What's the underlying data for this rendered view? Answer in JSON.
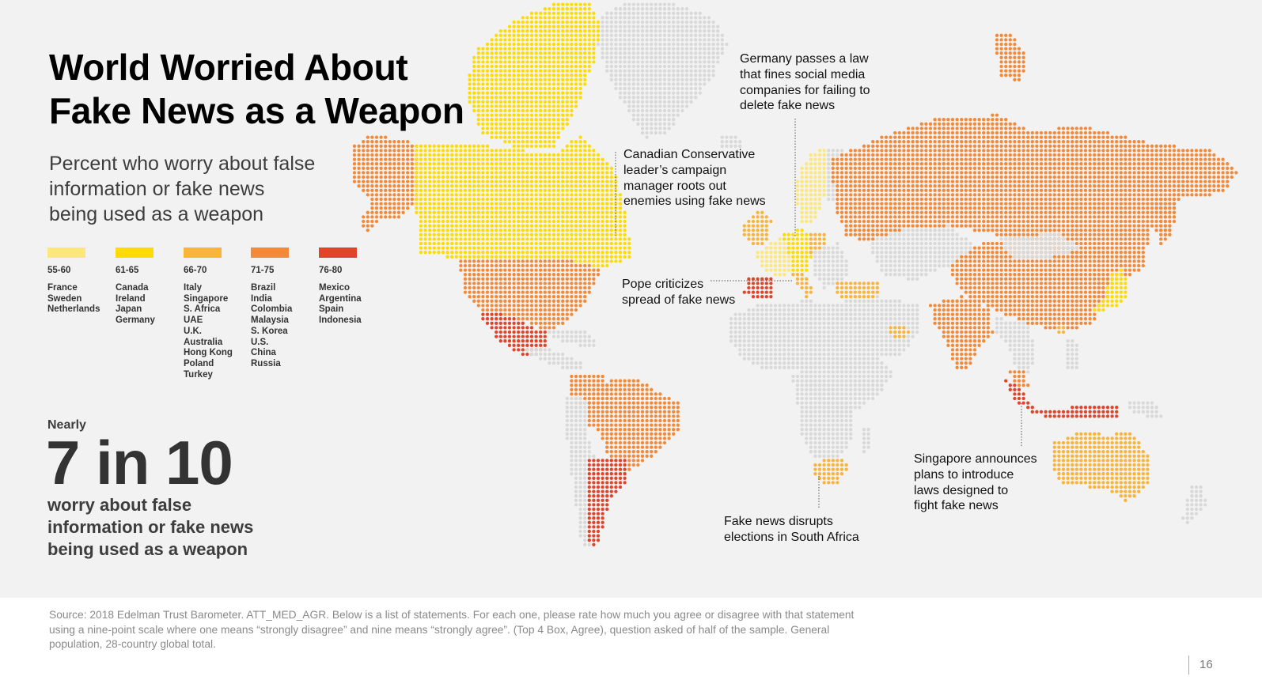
{
  "title": [
    "World Worried About",
    "Fake News as a Weapon"
  ],
  "subtitle": [
    "Percent who worry about false",
    "information or fake news",
    "being used as a weapon"
  ],
  "legend": [
    {
      "range": "55-60",
      "color": "#fce77d",
      "countries": [
        "France",
        "Sweden",
        "Netherlands"
      ]
    },
    {
      "range": "61-65",
      "color": "#fddc06",
      "countries": [
        "Canada",
        "Ireland",
        "Japan",
        "Germany"
      ]
    },
    {
      "range": "66-70",
      "color": "#f9b43a",
      "countries": [
        "Italy",
        "Singapore",
        "S. Africa",
        "UAE",
        "U.K.",
        "Australia",
        "Hong Kong",
        "Poland",
        "Turkey"
      ]
    },
    {
      "range": "71-75",
      "color": "#f28a3a",
      "countries": [
        "Brazil",
        "India",
        "Colombia",
        "Malaysia",
        "S. Korea",
        "U.S.",
        "China",
        "Russia"
      ]
    },
    {
      "range": "76-80",
      "color": "#e0452c",
      "countries": [
        "Mexico",
        "Argentina",
        "Spain",
        "Indonesia"
      ]
    }
  ],
  "stat": {
    "prefix": "Nearly",
    "value": "7 in 10",
    "caption": [
      "worry about false",
      "information or fake news",
      "being used as a weapon"
    ]
  },
  "annotations": [
    {
      "id": "germany",
      "lines": [
        "Germany passes a law",
        "that fines social media",
        "companies for failing to",
        "delete fake news"
      ]
    },
    {
      "id": "canada",
      "lines": [
        "Canadian Conservative",
        "leader’s campaign",
        "manager roots out",
        "enemies using fake news"
      ]
    },
    {
      "id": "pope",
      "lines": [
        "Pope criticizes",
        "spread of fake news"
      ]
    },
    {
      "id": "south-africa",
      "lines": [
        "Fake news disrupts",
        "elections in South Africa"
      ]
    },
    {
      "id": "singapore",
      "lines": [
        "Singapore announces",
        "plans to introduce",
        "laws designed to",
        "fight fake news"
      ]
    }
  ],
  "colors": {
    "no_data": "#d9d9d9",
    "background": "#f2f2f2",
    "leader_line": "#555555"
  },
  "source": [
    "Source: 2018 Edelman Trust Barometer. ATT_MED_AGR. Below is a list of statements. For each one, please rate how much you agree or disagree with that statement",
    "using a nine-point scale where one means “strongly disagree” and nine means “strongly agree”. (Top 4 Box, Agree), question asked of half of the sample. General",
    "population, 28-country global total."
  ],
  "page_number": "16"
}
